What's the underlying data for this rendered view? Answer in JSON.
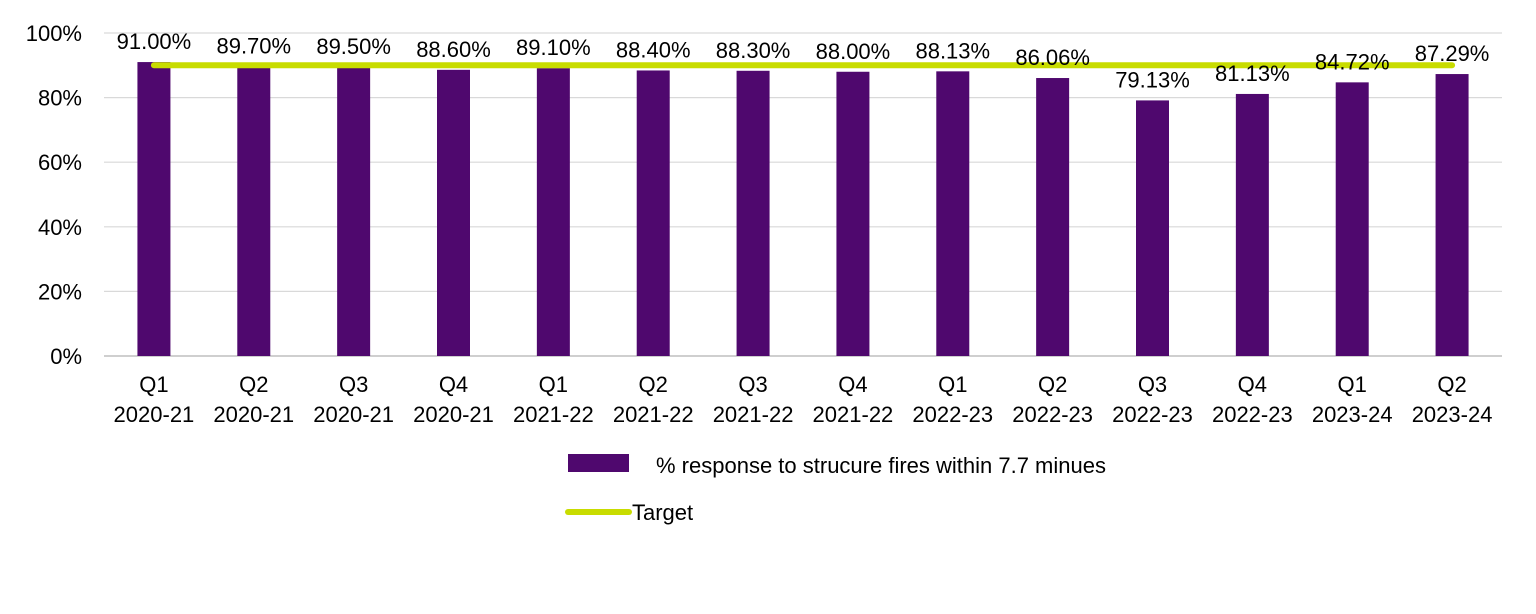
{
  "chart_data": {
    "type": "bar",
    "categories": [
      [
        "Q1",
        "2020-21"
      ],
      [
        "Q2",
        "2020-21"
      ],
      [
        "Q3",
        "2020-21"
      ],
      [
        "Q4",
        "2020-21"
      ],
      [
        "Q1",
        "2021-22"
      ],
      [
        "Q2",
        "2021-22"
      ],
      [
        "Q3",
        "2021-22"
      ],
      [
        "Q4",
        "2021-22"
      ],
      [
        "Q1",
        "2022-23"
      ],
      [
        "Q2",
        "2022-23"
      ],
      [
        "Q3",
        "2022-23"
      ],
      [
        "Q4",
        "2022-23"
      ],
      [
        "Q1",
        "2023-24"
      ],
      [
        "Q2",
        "2023-24"
      ]
    ],
    "series": [
      {
        "name": "% response to strucure fires within 7.7 minues",
        "type": "bar",
        "color": "#4f086e",
        "values": [
          91.0,
          89.7,
          89.5,
          88.6,
          89.1,
          88.4,
          88.3,
          88.0,
          88.13,
          86.06,
          79.13,
          81.13,
          84.72,
          87.29
        ],
        "labels": [
          "91.00%",
          "89.70%",
          "89.50%",
          "88.60%",
          "89.10%",
          "88.40%",
          "88.30%",
          "88.00%",
          "88.13%",
          "86.06%",
          "79.13%",
          "81.13%",
          "84.72%",
          "87.29%"
        ]
      },
      {
        "name": "Target",
        "type": "line",
        "color": "#c8dc00",
        "values": [
          90,
          90,
          90,
          90,
          90,
          90,
          90,
          90,
          90,
          90,
          90,
          90,
          90,
          90
        ]
      }
    ],
    "ylim": [
      0,
      100
    ],
    "yticks": [
      0,
      20,
      40,
      60,
      80,
      100
    ],
    "ytick_labels": [
      "0%",
      "20%",
      "40%",
      "60%",
      "80%",
      "100%"
    ],
    "grid": true,
    "legend_position": "bottom"
  }
}
